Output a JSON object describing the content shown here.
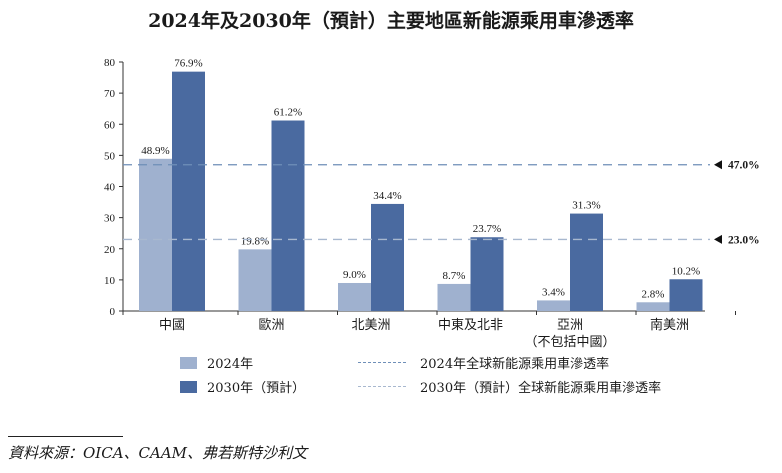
{
  "chart_data": {
    "type": "bar",
    "title": "2024年及2030年（預計）主要地區新能源乘用車滲透率",
    "categories": [
      [
        "中國"
      ],
      [
        "歐洲"
      ],
      [
        "北美洲"
      ],
      [
        "中東及北非"
      ],
      [
        "亞洲",
        "（不包括中國）"
      ],
      [
        "南美洲"
      ]
    ],
    "series": [
      {
        "name": "2024年",
        "values": [
          48.9,
          19.8,
          9.0,
          8.7,
          3.4,
          2.8
        ],
        "labels": [
          "48.9%",
          "19.8%",
          "9.0%",
          "8.7%",
          "3.4%",
          "2.8%"
        ],
        "color": "#9fb1cf"
      },
      {
        "name": "2030年（預計）",
        "values": [
          76.9,
          61.2,
          34.4,
          23.7,
          31.3,
          10.2
        ],
        "labels": [
          "76.9%",
          "61.2%",
          "34.4%",
          "23.7%",
          "31.3%",
          "10.2%"
        ],
        "color": "#4a6aa0"
      }
    ],
    "reference_lines": [
      {
        "name": "2024年全球新能源乘用車滲透率",
        "value": 23.0,
        "label": "23.0%"
      },
      {
        "name": "2030年（預計）全球新能源乘用車滲透率",
        "value": 47.0,
        "label": "47.0%"
      }
    ],
    "ylim": [
      0,
      80
    ],
    "yticks": [
      0,
      10,
      20,
      30,
      40,
      50,
      60,
      70,
      80
    ],
    "xlabel": "",
    "ylabel": "",
    "legend_position": "bottom"
  },
  "legend": {
    "bar_2024": "2024年",
    "bar_2030": "2030年（預計）",
    "line_2024": "2024年全球新能源乘用車滲透率",
    "line_2030": "2030年（預計）全球新能源乘用車滲透率"
  },
  "colors": {
    "bar_2024": "#9fb1cf",
    "bar_2030": "#4a6aa0",
    "line_2024": "#6f8fb8",
    "line_2030": "#a8b8cf"
  },
  "source": "資料來源：OICA、CAAM、弗若斯特沙利文"
}
